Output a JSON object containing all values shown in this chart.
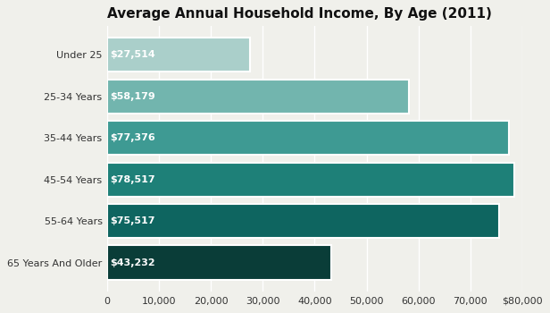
{
  "title": "Average Annual Household Income, By Age (2011)",
  "categories": [
    "Under 25",
    "25-34 Years",
    "35-44 Years",
    "45-54 Years",
    "55-64 Years",
    "65 Years And Older"
  ],
  "values": [
    27514,
    58179,
    77376,
    78517,
    75517,
    43232
  ],
  "labels": [
    "$27,514",
    "$58,179",
    "$77,376",
    "$78,517",
    "$75,517",
    "$43,232"
  ],
  "bar_colors": [
    "#aacfca",
    "#72b5ae",
    "#3e9a93",
    "#1e8078",
    "#0e6560",
    "#0a3d38"
  ],
  "xlim": [
    0,
    80000
  ],
  "xticks": [
    0,
    10000,
    20000,
    30000,
    40000,
    50000,
    60000,
    70000,
    80000
  ],
  "xtick_labels": [
    "0",
    "10,000",
    "20,000",
    "30,000",
    "40,000",
    "50,000",
    "60,000",
    "70,000",
    "$80,000"
  ],
  "background_color": "#f0f0eb",
  "title_fontsize": 11,
  "label_fontsize": 8,
  "ytick_fontsize": 8,
  "xtick_fontsize": 8
}
